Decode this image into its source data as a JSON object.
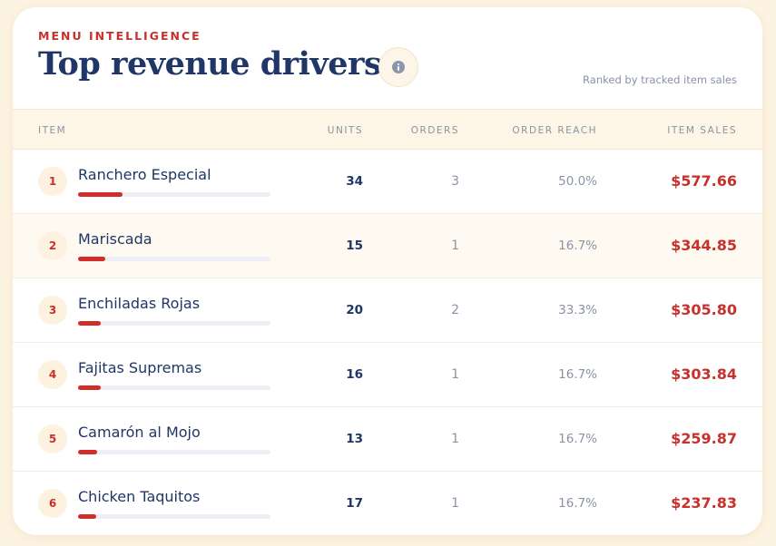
{
  "header": {
    "eyebrow": "MENU INTELLIGENCE",
    "title": "Top revenue drivers",
    "subtitle": "Ranked by tracked item sales",
    "info_icon": "info-icon"
  },
  "table": {
    "columns": {
      "item": "ITEM",
      "units": "UNITS",
      "orders": "ORDERS",
      "reach": "ORDER REACH",
      "sales": "ITEM SALES"
    },
    "rows": [
      {
        "rank": "1",
        "name": "Ranchero Especial",
        "units": "34",
        "orders": "3",
        "reach": "50.0%",
        "sales": "$577.66",
        "share": 0.23
      },
      {
        "rank": "2",
        "name": "Mariscada",
        "units": "15",
        "orders": "1",
        "reach": "16.7%",
        "sales": "$344.85",
        "share": 0.14
      },
      {
        "rank": "3",
        "name": "Enchiladas Rojas",
        "units": "20",
        "orders": "2",
        "reach": "33.3%",
        "sales": "$305.80",
        "share": 0.12
      },
      {
        "rank": "4",
        "name": "Fajitas Supremas",
        "units": "16",
        "orders": "1",
        "reach": "16.7%",
        "sales": "$303.84",
        "share": 0.12
      },
      {
        "rank": "5",
        "name": "Camarón al Mojo",
        "units": "13",
        "orders": "1",
        "reach": "16.7%",
        "sales": "$259.87",
        "share": 0.1
      },
      {
        "rank": "6",
        "name": "Chicken Taquitos",
        "units": "17",
        "orders": "1",
        "reach": "16.7%",
        "sales": "$237.83",
        "share": 0.095
      }
    ]
  },
  "colors": {
    "accent": "#c8302c",
    "title": "#1f3666",
    "muted": "#8a93a6",
    "header_bg": "#fdf5e6"
  }
}
